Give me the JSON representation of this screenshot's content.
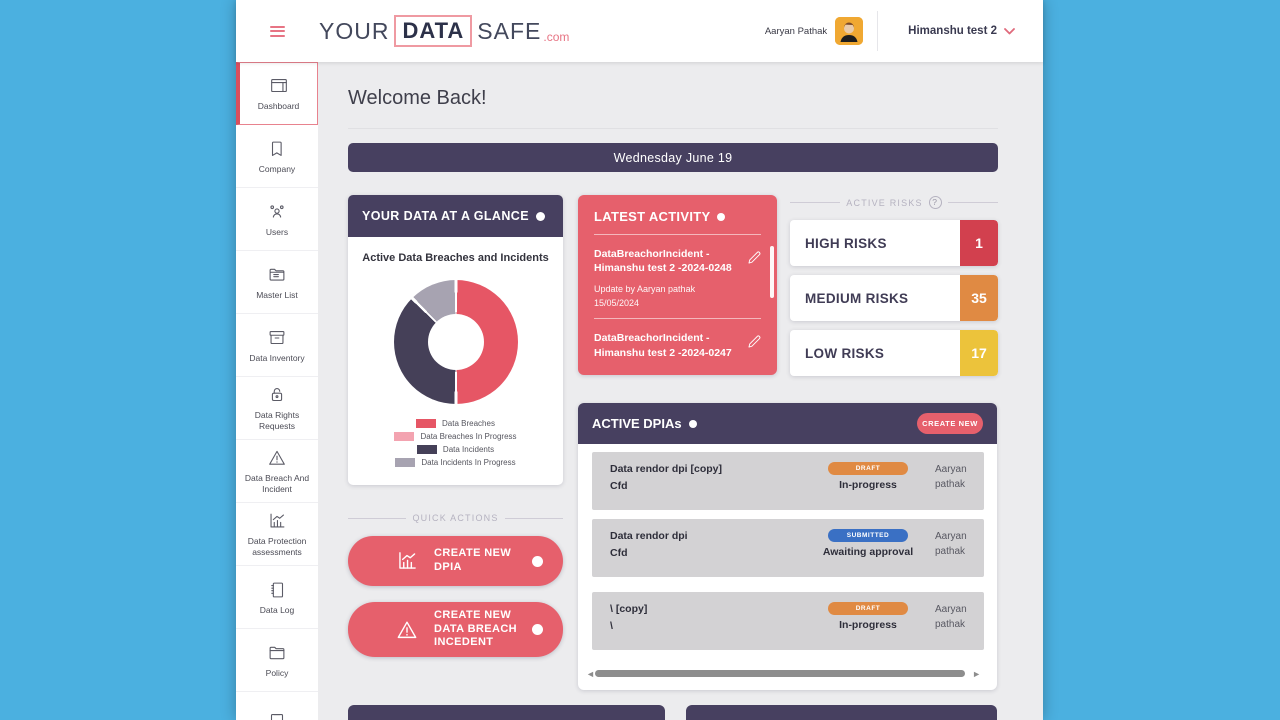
{
  "app": {
    "accent_red": "#e6606c",
    "purple": "#474060",
    "page_blue": "#4bb0e0"
  },
  "header": {
    "logo": {
      "your": "YOUR",
      "data": "DATA",
      "safe": "SAFE",
      "com": ".com"
    },
    "user_name": "Aaryan Pathak",
    "org_selector": "Himanshu test 2"
  },
  "sidebar": {
    "items": [
      {
        "label": "Dashboard",
        "icon": "dashboard-icon",
        "active": true
      },
      {
        "label": "Company",
        "icon": "bookmark-icon",
        "active": false
      },
      {
        "label": "Users",
        "icon": "users-icon",
        "active": false
      },
      {
        "label": "Master List",
        "icon": "folder-files-icon",
        "active": false
      },
      {
        "label": "Data Inventory",
        "icon": "archive-box-icon",
        "active": false
      },
      {
        "label": "Data Rights Requests",
        "icon": "lock-icon",
        "active": false
      },
      {
        "label": "Data Breach And Incident",
        "icon": "warning-triangle-icon",
        "active": false
      },
      {
        "label": "Data Protection assessments",
        "icon": "bar-chart-icon",
        "active": false
      },
      {
        "label": "Data Log",
        "icon": "notebook-icon",
        "active": false
      },
      {
        "label": "Policy",
        "icon": "folder-icon",
        "active": false
      },
      {
        "label": "",
        "icon": "clipboard-icon",
        "active": false
      }
    ]
  },
  "main": {
    "welcome": "Welcome Back!",
    "date_banner": "Wednesday June 19",
    "glance": {
      "header": "YOUR DATA AT A GLANCE",
      "chart_title": "Active Data Breaches and Incidents"
    },
    "latest_activity": {
      "header": "LATEST ACTIVITY",
      "items": [
        {
          "title": "DataBreachorIncident - Himanshu test 2 -2024-0248",
          "updated_by": "Update by Aaryan pathak",
          "date": "15/05/2024"
        },
        {
          "title": "DataBreachorIncident - Himanshu test 2 -2024-0247"
        }
      ]
    },
    "active_risks": {
      "label": "ACTIVE RISKS",
      "help": "?",
      "rows": [
        {
          "label": "HIGH RISKS",
          "count": "1",
          "color": "#d2404e"
        },
        {
          "label": "MEDIUM RISKS",
          "count": "35",
          "color": "#e08a43"
        },
        {
          "label": "LOW RISKS",
          "count": "17",
          "color": "#ecc33b"
        }
      ]
    },
    "dpias": {
      "header": "ACTIVE DPIAs",
      "create_button": "CREATE NEW",
      "rows": [
        {
          "title": "Data rendor dpi [copy]",
          "subtitle": "Cfd",
          "badge": "DRAFT",
          "badge_color": "#e08a43",
          "status": "In-progress",
          "owner": "Aaryan pathak"
        },
        {
          "title": "Data rendor dpi",
          "subtitle": "Cfd",
          "badge": "SUBMITTED",
          "badge_color": "#3a70c4",
          "status": "Awaiting approval",
          "owner": "Aaryan pathak"
        },
        {
          "title": "\\ [copy]",
          "subtitle": "\\",
          "badge": "DRAFT",
          "badge_color": "#e08a43",
          "status": "In-progress",
          "owner": "Aaryan pathak"
        }
      ]
    },
    "quick_actions": {
      "label": "QUICK ACTIONS",
      "buttons": [
        {
          "label": "CREATE NEW DPIA",
          "icon": "bar-chart-icon"
        },
        {
          "label": "CREATE NEW DATA BREACH INCEDENT",
          "icon": "warning-triangle-icon"
        }
      ]
    }
  },
  "chart_data": {
    "type": "pie",
    "donut": true,
    "title": "Active Data Breaches and Incidents",
    "labels": [
      "Data Breaches",
      "Data Breaches In Progress",
      "Data Incidents",
      "Data Incidents In Progress"
    ],
    "values": [
      50,
      0,
      37.5,
      12.5
    ],
    "colors": [
      "#e65665",
      "#f3a3b0",
      "#454058",
      "#a7a3b1"
    ],
    "legend_position": "bottom"
  }
}
